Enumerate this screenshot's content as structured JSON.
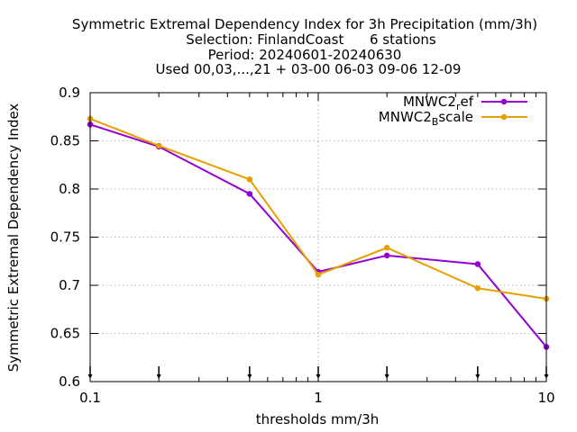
{
  "chart_data": {
    "type": "line",
    "title_lines": [
      "Symmetric Extremal Dependency Index  for 3h Precipitation (mm/3h)",
      "Selection: FinlandCoast      6 stations",
      "Period: 20240601-20240630",
      "Used 00,03,...,21 + 03-00 06-03 09-06 12-09"
    ],
    "xlabel": "thresholds mm/3h",
    "ylabel": "Symmetric Extremal Dependency Index",
    "xscale": "log",
    "xlim": [
      0.1,
      10
    ],
    "ylim": [
      0.6,
      0.9
    ],
    "xticks": [
      0.1,
      1,
      10
    ],
    "xtick_labels": [
      "0.1",
      "1",
      "10"
    ],
    "yticks": [
      0.6,
      0.65,
      0.7,
      0.75,
      0.8,
      0.85,
      0.9
    ],
    "ytick_labels": [
      "0.6",
      "0.65",
      "0.7",
      "0.75",
      "0.8",
      "0.85",
      "0.9"
    ],
    "grid": true,
    "legend_position": "top-right",
    "threshold_markers": [
      0.1,
      0.2,
      0.5,
      1,
      2,
      5,
      10
    ],
    "x": [
      0.1,
      0.2,
      0.5,
      1,
      2,
      5,
      10
    ],
    "series": [
      {
        "name_base": "MNWC2",
        "name_sub": "r",
        "name_rest": "ef",
        "color": "#9400d3",
        "values": [
          0.867,
          0.844,
          0.795,
          0.714,
          0.731,
          0.722,
          0.636
        ]
      },
      {
        "name_base": "MNWC2",
        "name_sub": "B",
        "name_rest": "scale",
        "color": "#e69f00",
        "values": [
          0.873,
          0.845,
          0.81,
          0.711,
          0.739,
          0.697,
          0.686
        ]
      }
    ]
  }
}
